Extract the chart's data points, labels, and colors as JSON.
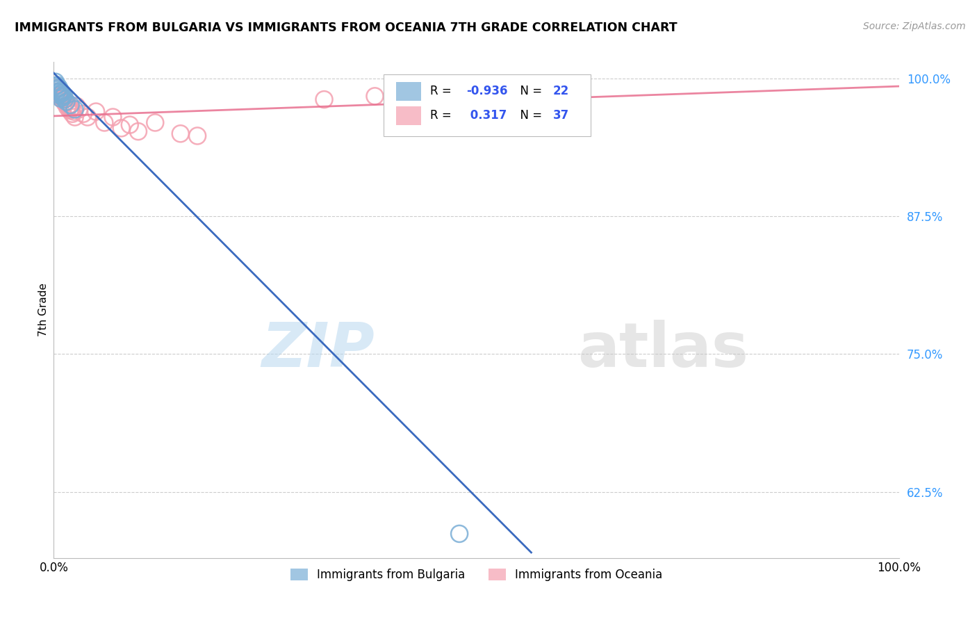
{
  "title": "IMMIGRANTS FROM BULGARIA VS IMMIGRANTS FROM OCEANIA 7TH GRADE CORRELATION CHART",
  "source": "Source: ZipAtlas.com",
  "ylabel": "7th Grade",
  "watermark_zip": "ZIP",
  "watermark_atlas": "atlas",
  "legend_blue_label": "Immigrants from Bulgaria",
  "legend_pink_label": "Immigrants from Oceania",
  "R_blue": "-0.936",
  "N_blue": "22",
  "R_pink": "0.317",
  "N_pink": "37",
  "blue_color": "#7aaed6",
  "pink_color": "#f4a0b0",
  "blue_line_color": "#3a6abf",
  "pink_line_color": "#e87090",
  "xlim": [
    0.0,
    1.0
  ],
  "ylim": [
    0.565,
    1.015
  ],
  "yticks": [
    0.625,
    0.75,
    0.875,
    1.0
  ],
  "ytick_labels": [
    "62.5%",
    "75.0%",
    "87.5%",
    "100.0%"
  ],
  "xtick_labels": [
    "0.0%",
    "100.0%"
  ],
  "blue_points_x": [
    0.002,
    0.004,
    0.006,
    0.008,
    0.01,
    0.012,
    0.005,
    0.007,
    0.009,
    0.011,
    0.003,
    0.005,
    0.008,
    0.01,
    0.013,
    0.015,
    0.004,
    0.006,
    0.008,
    0.02,
    0.025,
    0.48
  ],
  "blue_points_y": [
    0.997,
    0.994,
    0.992,
    0.989,
    0.987,
    0.985,
    0.991,
    0.988,
    0.986,
    0.983,
    0.993,
    0.99,
    0.987,
    0.984,
    0.981,
    0.979,
    0.988,
    0.985,
    0.982,
    0.976,
    0.972,
    0.587
  ],
  "pink_points_x": [
    0.003,
    0.006,
    0.009,
    0.012,
    0.015,
    0.018,
    0.021,
    0.024,
    0.027,
    0.03,
    0.008,
    0.011,
    0.014,
    0.017,
    0.02,
    0.035,
    0.04,
    0.05,
    0.06,
    0.07,
    0.08,
    0.09,
    0.1,
    0.12,
    0.15,
    0.17,
    0.004,
    0.007,
    0.01,
    0.013,
    0.016,
    0.019,
    0.022,
    0.025,
    0.32,
    0.38,
    0.42
  ],
  "pink_points_y": [
    0.991,
    0.988,
    0.985,
    0.982,
    0.979,
    0.976,
    0.973,
    0.97,
    0.975,
    0.972,
    0.984,
    0.981,
    0.978,
    0.975,
    0.972,
    0.968,
    0.965,
    0.97,
    0.96,
    0.965,
    0.955,
    0.958,
    0.952,
    0.96,
    0.95,
    0.948,
    0.988,
    0.984,
    0.981,
    0.978,
    0.974,
    0.971,
    0.968,
    0.965,
    0.981,
    0.984,
    0.987
  ],
  "blue_line_x": [
    0.0,
    0.565
  ],
  "blue_line_y": [
    1.005,
    0.57
  ],
  "pink_line_x": [
    0.0,
    1.0
  ],
  "pink_line_y": [
    0.966,
    0.993
  ]
}
